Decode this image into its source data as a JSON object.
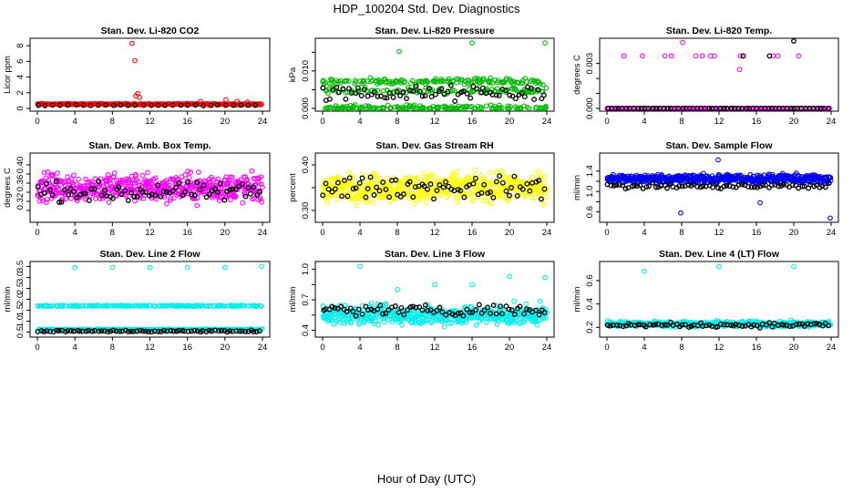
{
  "page": {
    "title": "HDP_100204  Std. Dev. Diagnostics",
    "xlabel": "Hour of Day (UTC)"
  },
  "chart_data": [
    {
      "type": "scatter",
      "title": "Stan. Dev. Li-820 CO2",
      "ylabel": "Licor ppm",
      "color": "#ff0000",
      "xlim": [
        0,
        24
      ],
      "xticks": [
        0,
        4,
        8,
        12,
        16,
        20,
        24
      ],
      "ylim": [
        0,
        8.6
      ],
      "yticks": [
        0,
        2,
        4,
        6,
        8
      ],
      "series": {
        "base": 0.55,
        "spread": 0.12,
        "n": 220,
        "outliers": [
          [
            10.1,
            8.3
          ],
          [
            10.4,
            6.1
          ],
          [
            10.7,
            1.9
          ],
          [
            10.9,
            1.4
          ],
          [
            10.5,
            1.6
          ],
          [
            17.4,
            0.9
          ],
          [
            20.1,
            1.1
          ],
          [
            21.3,
            0.9
          ],
          [
            22.4,
            0.8
          ]
        ],
        "black_base": 0.4,
        "black_spread": 0.08,
        "black_n": 30
      }
    },
    {
      "type": "scatter",
      "title": "Stan. Dev. Li-820 Pressure",
      "ylabel": "kPa",
      "color": "#00bb00",
      "xlim": [
        0,
        24
      ],
      "xticks": [
        0,
        4,
        8,
        12,
        16,
        20,
        24
      ],
      "ylim": [
        0,
        0.018
      ],
      "yticks": [
        0,
        0.005,
        0.01,
        0.015
      ],
      "yticklabels": [
        "0.000",
        "",
        "0.010",
        ""
      ],
      "series": {
        "base": 0.0035,
        "spread": 0.0035,
        "n": 420,
        "levels": [
          0,
          0.0048,
          0.0072
        ],
        "outliers": [
          [
            8.2,
            0.0152
          ],
          [
            16.0,
            0.0175
          ],
          [
            23.8,
            0.0175
          ]
        ],
        "black_base": 0.004,
        "black_spread": 0.003,
        "black_n": 70
      }
    },
    {
      "type": "scatter",
      "title": "Stan. Dev. Li-820 Temp.",
      "ylabel": "degrees C",
      "color": "#ff00ff",
      "xlim": [
        0,
        24
      ],
      "xticks": [
        0,
        4,
        8,
        12,
        16,
        20,
        24
      ],
      "ylim": [
        0,
        0.0045
      ],
      "yticks": [
        0,
        0.001,
        0.002,
        0.003
      ],
      "yticklabels": [
        "0.000",
        "",
        "",
        "0.003"
      ],
      "series": {
        "base": 0,
        "spread": 0,
        "n": 120,
        "levels": [
          0
        ],
        "outliers": [
          [
            1.8,
            0.0035
          ],
          [
            3.8,
            0.0035
          ],
          [
            6.2,
            0.0035
          ],
          [
            6.9,
            0.0035
          ],
          [
            8.1,
            0.0044
          ],
          [
            9.5,
            0.0035
          ],
          [
            10.2,
            0.0035
          ],
          [
            11.1,
            0.0035
          ],
          [
            11.5,
            0.0035
          ],
          [
            14.2,
            0.0026
          ],
          [
            14.3,
            0.0035
          ],
          [
            17.8,
            0.0035
          ],
          [
            18.3,
            0.0035
          ],
          [
            20.5,
            0.0035
          ]
        ],
        "black_base": 0,
        "black_spread": 0,
        "black_n": 60,
        "black_outliers": [
          [
            14.6,
            0.0035
          ],
          [
            17.4,
            0.0035
          ],
          [
            20.0,
            0.0045
          ]
        ]
      }
    },
    {
      "type": "scatter",
      "title": "Stan. Dev. Amb. Box Temp.",
      "ylabel": "degrees C",
      "color": "#ff00ff",
      "xlim": [
        0,
        24
      ],
      "xticks": [
        0,
        4,
        8,
        12,
        16,
        20,
        24
      ],
      "ylim": [
        0.28,
        0.42
      ],
      "yticks": [
        0.3,
        0.32,
        0.34,
        0.36,
        0.38,
        0.4
      ],
      "yticklabels": [
        "",
        "0.32",
        "",
        "0.36",
        "",
        "0.40"
      ],
      "series": {
        "base": 0.35,
        "spread": 0.045,
        "n": 520,
        "outliers": [],
        "black_base": 0.34,
        "black_spread": 0.03,
        "black_n": 75
      }
    },
    {
      "type": "scatter",
      "title": "Stan. Dev. Gas Stream RH",
      "ylabel": "percent",
      "color": "#ffff00",
      "xlim": [
        0,
        24
      ],
      "xticks": [
        0,
        4,
        8,
        12,
        16,
        20,
        24
      ],
      "ylim": [
        0.28,
        0.42
      ],
      "yticks": [
        0.3,
        0.35,
        0.4
      ],
      "yticklabels": [
        "0.30",
        "",
        "0.40"
      ],
      "series": {
        "base": 0.35,
        "spread": 0.045,
        "n": 520,
        "outliers": [],
        "black_base": 0.35,
        "black_spread": 0.035,
        "black_n": 75
      }
    },
    {
      "type": "scatter",
      "title": "Stan. Dev. Sample Flow",
      "ylabel": "ml/min",
      "color": "#0000ee",
      "xlim": [
        0,
        24
      ],
      "xticks": [
        0,
        4,
        8,
        12,
        16,
        20,
        24
      ],
      "ylim": [
        0.45,
        1.7
      ],
      "yticks": [
        0.6,
        0.8,
        1.0,
        1.2,
        1.4
      ],
      "yticklabels": [
        "0.6",
        "",
        "1.0",
        "",
        "1.4"
      ],
      "series": {
        "base": 1.25,
        "spread": 0.13,
        "n": 520,
        "outliers": [
          [
            7.9,
            0.58
          ],
          [
            16.4,
            0.78
          ],
          [
            23.9,
            0.48
          ],
          [
            11.9,
            1.62
          ]
        ],
        "black_base": 1.1,
        "black_spread": 0.08,
        "black_n": 75
      }
    },
    {
      "type": "scatter",
      "title": "Stan. Dev. Line 2 Flow",
      "ylabel": "ml/min",
      "color": "#00eeee",
      "xlim": [
        0,
        24
      ],
      "xticks": [
        0,
        4,
        8,
        12,
        16,
        20,
        24
      ],
      "ylim": [
        0.4,
        3.6
      ],
      "yticks": [
        0.5,
        1,
        1.5,
        2,
        2.5,
        3,
        3.5
      ],
      "yticklabels": [
        "0.5",
        "1.0",
        "1.5",
        "2.0",
        "2.5",
        "3.0",
        "3.5"
      ],
      "series": {
        "base": 1.7,
        "spread": 0.12,
        "n": 420,
        "levels": [
          1.7,
          0.62
        ],
        "outliers": [
          [
            4.0,
            3.45
          ],
          [
            8.0,
            3.45
          ],
          [
            12.0,
            3.45
          ],
          [
            16.0,
            3.45
          ],
          [
            20.0,
            3.45
          ],
          [
            23.9,
            3.5
          ]
        ],
        "black_base": 0.55,
        "black_spread": 0.06,
        "black_n": 75
      }
    },
    {
      "type": "scatter",
      "title": "Stan. Dev. Line 3 Flow",
      "ylabel": "ml/min",
      "color": "#00eeee",
      "xlim": [
        0,
        24
      ],
      "xticks": [
        0,
        4,
        8,
        12,
        16,
        20,
        24
      ],
      "ylim": [
        0.36,
        1.05
      ],
      "yticks": [
        0.4,
        0.55,
        0.7,
        0.85,
        1.0
      ],
      "yticklabels": [
        "0.4",
        "",
        "0.7",
        "",
        "1.0"
      ],
      "series": {
        "base": 0.55,
        "spread": 0.14,
        "n": 520,
        "outliers": [
          [
            4.0,
            1.03
          ],
          [
            8.0,
            0.8
          ],
          [
            12.0,
            0.85
          ],
          [
            16.0,
            0.85
          ],
          [
            20.0,
            0.93
          ],
          [
            23.8,
            0.92
          ]
        ],
        "black_base": 0.6,
        "black_spread": 0.08,
        "black_n": 75
      }
    },
    {
      "type": "scatter",
      "title": "Stan. Dev. Line 4 (LT) Flow",
      "ylabel": "ml/min",
      "color": "#00eeee",
      "xlim": [
        0,
        24
      ],
      "xticks": [
        0,
        4,
        8,
        12,
        16,
        20,
        24
      ],
      "ylim": [
        0.14,
        0.74
      ],
      "yticks": [
        0.2,
        0.4,
        0.6
      ],
      "yticklabels": [
        "0.2",
        "0.4",
        "0.6"
      ],
      "series": {
        "base": 0.23,
        "spread": 0.035,
        "n": 420,
        "outliers": [
          [
            4.0,
            0.68
          ],
          [
            12.0,
            0.72
          ],
          [
            20.0,
            0.72
          ]
        ],
        "black_base": 0.22,
        "black_spread": 0.03,
        "black_n": 75
      }
    }
  ]
}
